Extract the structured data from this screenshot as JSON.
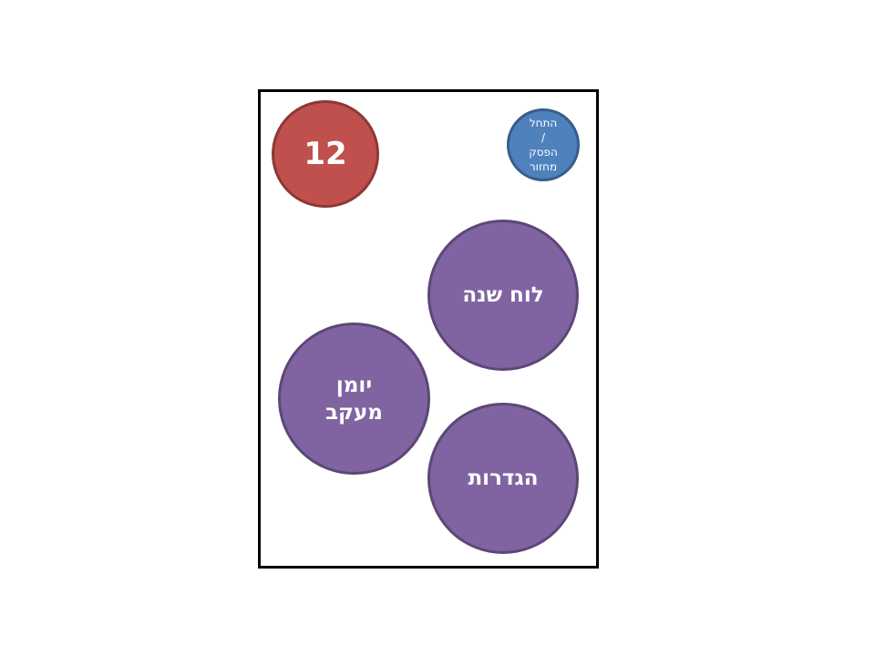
{
  "colors": {
    "counter_fill": "#c0504d",
    "counter_border": "#8c3836",
    "cycle_fill": "#4f81bd",
    "cycle_border": "#385d8a",
    "menu_fill": "#8064a2",
    "menu_border": "#5c4776"
  },
  "counter": {
    "value": "12"
  },
  "cycle_button": {
    "line1": "התחל",
    "line2": "/",
    "line3": "הפסק",
    "line4": "מחזור"
  },
  "menu": {
    "calendar_label": "לוח שנה",
    "journal_line1": "יומן",
    "journal_line2": "מעקב",
    "settings_label": "הגדרות"
  }
}
